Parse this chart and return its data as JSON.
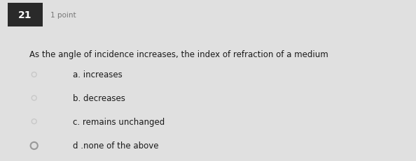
{
  "question_number": "21",
  "points": "1 point",
  "question_text": "As the angle of incidence increases, the index of refraction of a medium",
  "options": [
    "a. increases",
    "b. decreases",
    "c. remains unchanged",
    "d .none of the above"
  ],
  "bg_color": "#e0e0e0",
  "box_bg": "#2a2a2a",
  "box_text_color": "#ffffff",
  "text_color": "#1a1a1a",
  "points_color": "#777777",
  "circle_colors": [
    "#c8c8c8",
    "#c8c8c8",
    "#c8c8c8",
    "#999999"
  ],
  "circle_lws": [
    1.0,
    1.0,
    1.0,
    1.5
  ],
  "circle_radii": [
    0.015,
    0.015,
    0.015,
    0.022
  ]
}
